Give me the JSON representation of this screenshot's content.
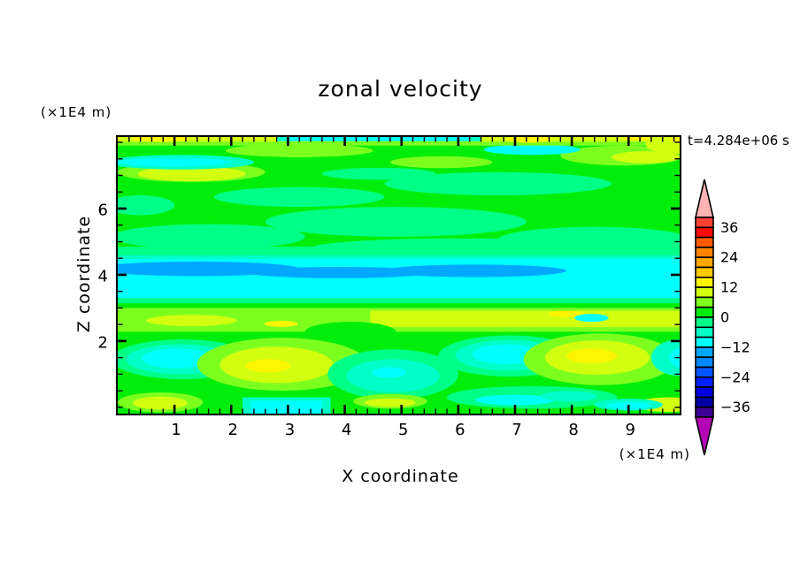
{
  "title": "zonal velocity",
  "time_label": "t=4.284e+06 s",
  "axes": {
    "x_label": "X coordinate",
    "y_label": "Z coordinate",
    "x_units": "(×1E4 m)",
    "y_units": "(×1E4 m)"
  },
  "background_color": "#FFFFFF",
  "text_color": "#000000",
  "chart_data": {
    "type": "heatmap",
    "subtype": "filled-contour",
    "title": "zonal velocity",
    "time": "t=4.284e+06 s",
    "xlabel": "X coordinate",
    "ylabel": "Z coordinate",
    "units_note": "both axes in (×1E4 m); x ≈ 0–9.9, z ≈ 0–8.2",
    "x_range": [
      0,
      9.9
    ],
    "z_range": [
      -0.19,
      8.16
    ],
    "x_major_ticks": [
      1,
      2,
      3,
      4,
      5,
      6,
      7,
      8,
      9
    ],
    "x_minor_step": 0.2,
    "z_major_ticks": [
      2,
      4,
      6
    ],
    "z_minor_ticks": [
      0,
      0.5,
      1,
      1.5,
      2.5,
      3,
      3.5,
      4.5,
      5,
      5.5,
      6.5,
      7,
      7.5,
      8
    ],
    "grid": false,
    "colorbar": {
      "orientation": "vertical",
      "position": "right",
      "level_min": -40,
      "level_max": 40,
      "level_step": 4,
      "labels": [
        36,
        24,
        12,
        0,
        -12,
        -24,
        -36
      ],
      "colors_top_to_bottom": [
        "#FF4133",
        "#F60C00",
        "#FF5A00",
        "#FF8500",
        "#FFA600",
        "#FFC900",
        "#FFF500",
        "#D2FF0F",
        "#7DFF1E",
        "#00EE0A",
        "#00FF87",
        "#00FFC8",
        "#00FFFF",
        "#00A8FF",
        "#0087FF",
        "#0055FF",
        "#0023FF",
        "#0000E1",
        "#0000A5",
        "#3C0096"
      ],
      "over_arrow_color": "#FFB3B3",
      "under_arrow_color": "#B400B4"
    },
    "palette": {
      "yellow": "#FFF500",
      "chartreuse": "#D2FF0F",
      "ltgreen": "#7DFF1E",
      "green": "#00EE0A",
      "emerald": "#00FF87",
      "aqua": "#00FFC8",
      "cyan": "#00FFFF",
      "sky": "#00A8FF"
    },
    "field_summary": "Layered zonal-velocity field u(x,z): weak flow (−4..4, green) over most of the domain; thin positive strip (~4..16) along the top edge; easterly jet (−16..−12, sky blue) centered near z≈4.1 spanning x 0–7.8 inside a −12..−8 cyan band (z≈3.3–4.5); westerly band (~4..12, light green/chartreuse) at z≈2.3–3.0; lower layer (z 0.5–2.3) green with cyan minima near x≈1.1, 4.9, 6.9 and yellow maxima (~12..16) near x≈2.7 and 8.4; mixed weak patches along the bottom boundary.",
    "profile_by_height": [
      {
        "z_band": "8.0-8.16",
        "u_approx": "4 to 16",
        "appearance": "light green/chartreuse strip, yellow spots at x≈0.8, 7.3, 9.2, cyan segment x≈3-6.2"
      },
      {
        "z_band": "4.8-8.0",
        "u_approx": "-4 to 4",
        "appearance": "green with emerald patches and small chartreuse/cyan streaks near z≈7-7.5"
      },
      {
        "z_band": "3.3-4.6",
        "u_approx": "-12 to -8",
        "appearance": "cyan band"
      },
      {
        "z_band": "3.9-4.35 (x 0-7.8)",
        "u_approx": "-16 to -12",
        "appearance": "sky-blue jet core"
      },
      {
        "z_band": "2.3-3.0",
        "u_approx": "4 to 12",
        "appearance": "light green band with chartreuse core, small yellow/cyan spots"
      },
      {
        "z_band": "0.5-2.3",
        "u_approx": "-12 to 16",
        "appearance": "green; cyan minima x≈1.1, 4.9, 6.9; yellow maxima x≈2.7, 8.4; turquoise at right edge"
      },
      {
        "z_band": "0-0.5",
        "u_approx": "-8 to 8",
        "appearance": "green with cyan strip x≈2.4-3.6, emerald/cyan x≈6.5-8.5, chartreuse spots x≈0.8, 4.8, 9.7"
      }
    ],
    "field_features": [
      {
        "t": "r",
        "c": "green",
        "b": [
          -0.1,
          -0.2,
          10.0,
          8.2
        ]
      },
      {
        "t": "e",
        "c": "emerald",
        "b": [
          0.4,
          6.1,
          0.6,
          0.3
        ]
      },
      {
        "t": "e",
        "c": "emerald",
        "b": [
          1.6,
          5.15,
          1.7,
          0.38
        ]
      },
      {
        "t": "e",
        "c": "emerald",
        "b": [
          4.9,
          5.6,
          2.3,
          0.45
        ]
      },
      {
        "t": "e",
        "c": "emerald",
        "b": [
          8.4,
          5.05,
          1.7,
          0.4
        ]
      },
      {
        "t": "e",
        "c": "emerald",
        "b": [
          3.2,
          6.35,
          1.5,
          0.3
        ]
      },
      {
        "t": "e",
        "c": "emerald",
        "b": [
          6.7,
          6.75,
          2.0,
          0.35
        ]
      },
      {
        "t": "e",
        "c": "emerald",
        "b": [
          4.6,
          7.05,
          1.0,
          0.18
        ]
      },
      {
        "t": "e",
        "c": "emerald",
        "b": [
          6.0,
          4.8,
          2.6,
          0.3
        ]
      },
      {
        "t": "e",
        "c": "ltgreen",
        "b": [
          1.3,
          7.1,
          1.3,
          0.3
        ]
      },
      {
        "t": "e",
        "c": "chartreuse",
        "b": [
          1.3,
          7.05,
          0.95,
          0.22
        ]
      },
      {
        "t": "e",
        "c": "ltgreen",
        "b": [
          5.7,
          7.4,
          0.9,
          0.18
        ]
      },
      {
        "t": "e",
        "c": "ltgreen",
        "b": [
          3.2,
          7.75,
          1.3,
          0.2
        ]
      },
      {
        "t": "e",
        "c": "ltgreen",
        "b": [
          8.9,
          7.6,
          1.1,
          0.3
        ]
      },
      {
        "t": "e",
        "c": "chartreuse",
        "b": [
          9.3,
          7.55,
          0.6,
          0.18
        ]
      },
      {
        "t": "e",
        "c": "aqua",
        "b": [
          1.1,
          7.4,
          1.3,
          0.22
        ]
      },
      {
        "t": "e",
        "c": "cyan",
        "b": [
          1.0,
          7.4,
          1.0,
          0.13
        ]
      },
      {
        "t": "e",
        "c": "cyan",
        "b": [
          7.3,
          7.78,
          0.85,
          0.16
        ]
      },
      {
        "t": "r",
        "c": "ltgreen",
        "b": [
          0,
          7.9,
          9.9,
          8.16
        ]
      },
      {
        "t": "r",
        "c": "chartreuse",
        "b": [
          0,
          8.02,
          9.9,
          8.16
        ]
      },
      {
        "t": "e",
        "c": "yellow",
        "b": [
          0.75,
          8.1,
          0.5,
          0.09
        ]
      },
      {
        "t": "r",
        "c": "aqua",
        "b": [
          2.8,
          8.03,
          6.4,
          8.16
        ]
      },
      {
        "t": "r",
        "c": "cyan",
        "b": [
          3.0,
          8.06,
          6.2,
          8.16
        ]
      },
      {
        "t": "e",
        "c": "yellow",
        "b": [
          7.25,
          8.09,
          0.4,
          0.1
        ]
      },
      {
        "t": "e",
        "c": "yellow",
        "b": [
          9.15,
          8.12,
          0.22,
          0.07
        ]
      },
      {
        "t": "e",
        "c": "chartreuse",
        "b": [
          9.8,
          7.95,
          0.5,
          0.3
        ]
      },
      {
        "t": "e",
        "c": "yellow",
        "b": [
          9.93,
          8.07,
          0.2,
          0.08
        ]
      },
      {
        "t": "r",
        "c": "cyan",
        "b": [
          0,
          3.25,
          9.9,
          4.55
        ]
      },
      {
        "t": "r",
        "c": "aqua",
        "b": [
          0,
          4.48,
          9.9,
          4.62
        ]
      },
      {
        "t": "r",
        "c": "emerald",
        "b": [
          0,
          4.58,
          9.9,
          4.85
        ]
      },
      {
        "t": "e",
        "c": "sky",
        "b": [
          1.4,
          4.18,
          1.8,
          0.22
        ]
      },
      {
        "t": "e",
        "c": "sky",
        "b": [
          3.9,
          4.07,
          1.6,
          0.17
        ]
      },
      {
        "t": "e",
        "c": "sky",
        "b": [
          6.3,
          4.12,
          1.6,
          0.19
        ]
      },
      {
        "t": "r",
        "c": "emerald",
        "b": [
          0,
          3.12,
          9.9,
          3.3
        ]
      },
      {
        "t": "r",
        "c": "green",
        "b": [
          0,
          2.96,
          9.9,
          3.14
        ]
      },
      {
        "t": "r",
        "c": "ltgreen",
        "b": [
          0,
          2.28,
          9.9,
          3.0
        ]
      },
      {
        "t": "r",
        "c": "chartreuse",
        "b": [
          4.45,
          2.42,
          9.9,
          2.92
        ]
      },
      {
        "t": "e",
        "c": "chartreuse",
        "b": [
          1.3,
          2.62,
          0.8,
          0.17
        ]
      },
      {
        "t": "e",
        "c": "yellow",
        "b": [
          2.88,
          2.52,
          0.3,
          0.09
        ]
      },
      {
        "t": "e",
        "c": "green",
        "b": [
          4.1,
          2.28,
          0.8,
          0.3
        ]
      },
      {
        "t": "e",
        "c": "yellow",
        "b": [
          7.9,
          2.82,
          0.32,
          0.09
        ]
      },
      {
        "t": "e",
        "c": "cyan",
        "b": [
          8.35,
          2.7,
          0.3,
          0.12
        ]
      },
      {
        "t": "e",
        "c": "emerald",
        "b": [
          1.15,
          1.45,
          1.25,
          0.6
        ]
      },
      {
        "t": "e",
        "c": "aqua",
        "b": [
          1.1,
          1.45,
          0.95,
          0.45
        ]
      },
      {
        "t": "e",
        "c": "cyan",
        "b": [
          1.05,
          1.48,
          0.62,
          0.3
        ]
      },
      {
        "t": "e",
        "c": "ltgreen",
        "b": [
          2.9,
          1.3,
          1.5,
          0.8
        ]
      },
      {
        "t": "e",
        "c": "chartreuse",
        "b": [
          2.8,
          1.28,
          1.0,
          0.55
        ]
      },
      {
        "t": "e",
        "c": "yellow",
        "b": [
          2.65,
          1.25,
          0.4,
          0.2
        ]
      },
      {
        "t": "e",
        "c": "emerald",
        "b": [
          4.85,
          1.0,
          1.15,
          0.75
        ]
      },
      {
        "t": "e",
        "c": "aqua",
        "b": [
          4.85,
          0.95,
          0.82,
          0.5
        ]
      },
      {
        "t": "e",
        "c": "cyan",
        "b": [
          4.78,
          1.05,
          0.3,
          0.16
        ]
      },
      {
        "t": "e",
        "c": "emerald",
        "b": [
          6.9,
          1.55,
          1.25,
          0.62
        ]
      },
      {
        "t": "e",
        "c": "aqua",
        "b": [
          6.9,
          1.57,
          0.95,
          0.46
        ]
      },
      {
        "t": "e",
        "c": "cyan",
        "b": [
          6.85,
          1.6,
          0.6,
          0.3
        ]
      },
      {
        "t": "e",
        "c": "ltgreen",
        "b": [
          8.5,
          1.45,
          1.35,
          0.78
        ]
      },
      {
        "t": "e",
        "c": "chartreuse",
        "b": [
          8.45,
          1.5,
          0.92,
          0.52
        ]
      },
      {
        "t": "e",
        "c": "yellow",
        "b": [
          8.35,
          1.55,
          0.45,
          0.22
        ]
      },
      {
        "t": "e",
        "c": "aqua",
        "b": [
          9.9,
          1.5,
          0.5,
          0.55
        ]
      },
      {
        "t": "e",
        "c": "cyan",
        "b": [
          10.0,
          1.5,
          0.28,
          0.32
        ]
      },
      {
        "t": "e",
        "c": "emerald",
        "b": [
          7.3,
          0.3,
          1.5,
          0.34
        ]
      },
      {
        "t": "e",
        "c": "cyan",
        "b": [
          7.0,
          0.22,
          0.7,
          0.16
        ]
      },
      {
        "t": "e",
        "c": "aqua",
        "b": [
          7.95,
          0.33,
          0.5,
          0.16
        ]
      },
      {
        "t": "r",
        "c": "aqua",
        "b": [
          2.2,
          -0.2,
          3.75,
          0.3
        ]
      },
      {
        "t": "r",
        "c": "cyan",
        "b": [
          2.35,
          -0.2,
          3.6,
          0.2
        ]
      },
      {
        "t": "e",
        "c": "ltgreen",
        "b": [
          0.75,
          0.15,
          0.75,
          0.3
        ]
      },
      {
        "t": "e",
        "c": "chartreuse",
        "b": [
          0.75,
          0.13,
          0.48,
          0.2
        ]
      },
      {
        "t": "e",
        "c": "ltgreen",
        "b": [
          4.8,
          0.18,
          0.65,
          0.22
        ]
      },
      {
        "t": "e",
        "c": "chartreuse",
        "b": [
          4.8,
          0.14,
          0.45,
          0.13
        ]
      },
      {
        "t": "e",
        "c": "chartreuse",
        "b": [
          9.7,
          0.08,
          0.6,
          0.22
        ]
      },
      {
        "t": "e",
        "c": "aqua",
        "b": [
          9.0,
          0.08,
          0.6,
          0.18
        ]
      },
      {
        "t": "e",
        "c": "cyan",
        "b": [
          9.0,
          0.05,
          0.4,
          0.11
        ]
      }
    ]
  }
}
